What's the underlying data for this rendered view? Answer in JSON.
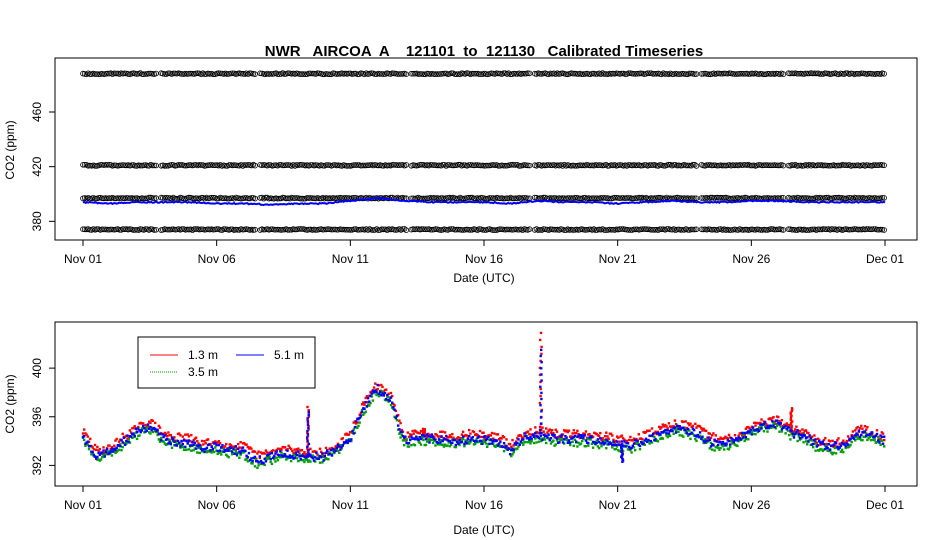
{
  "chart_data": [
    {
      "type": "scatter",
      "title": "NWR   AIRCOA  A    121101  to  121130   Calibrated Timeseries",
      "xlabel": "Date (UTC)",
      "ylabel": "CO2 (ppm)",
      "x_type": "date",
      "xlim": [
        "2012-11-01",
        "2012-12-01"
      ],
      "ylim": [
        370,
        490
      ],
      "x_ticks": [
        "Nov 01",
        "Nov 06",
        "Nov 11",
        "Nov 16",
        "Nov 21",
        "Nov 26",
        "Dec 01"
      ],
      "y_ticks": [
        380,
        420,
        460
      ],
      "grid": false,
      "series": [
        {
          "style": "open-circles",
          "color": "#000000",
          "levels": [
            374,
            397,
            421,
            488
          ],
          "gaps": [
            [
              "2012-11-03 18:00",
              "2012-11-03 21:00"
            ],
            [
              "2012-11-07 12:00",
              "2012-11-07 15:00"
            ],
            [
              "2012-11-13 03:00",
              "2012-11-13 06:00"
            ],
            [
              "2012-11-17 18:00",
              "2012-11-17 21:00"
            ],
            [
              "2012-11-24 00:00",
              "2012-11-24 03:00"
            ],
            [
              "2012-11-27 06:00",
              "2012-11-27 09:00"
            ]
          ]
        },
        {
          "style": "line",
          "color": "#0000ff",
          "x": [
            "2012-11-01",
            "2012-11-02",
            "2012-11-03",
            "2012-11-04",
            "2012-11-05",
            "2012-11-06",
            "2012-11-07",
            "2012-11-08",
            "2012-11-09",
            "2012-11-10",
            "2012-11-11",
            "2012-11-12",
            "2012-11-13",
            "2012-11-14",
            "2012-11-15",
            "2012-11-16",
            "2012-11-17",
            "2012-11-18",
            "2012-11-19",
            "2012-11-20",
            "2012-11-21",
            "2012-11-22",
            "2012-11-23",
            "2012-11-24",
            "2012-11-25",
            "2012-11-26",
            "2012-11-27",
            "2012-11-28",
            "2012-11-29",
            "2012-11-30",
            "2012-12-01"
          ],
          "values": [
            394,
            393,
            394,
            394,
            394,
            393,
            393,
            392,
            393,
            393,
            395,
            397,
            395,
            394,
            394,
            394,
            393,
            395,
            394,
            394,
            393,
            394,
            395,
            394,
            394,
            395,
            395,
            394,
            394,
            394,
            394
          ]
        }
      ]
    },
    {
      "type": "scatter",
      "xlabel": "Date (UTC)",
      "ylabel": "CO2 (ppm)",
      "x_type": "date",
      "xlim": [
        "2012-11-01",
        "2012-12-01"
      ],
      "ylim": [
        390.8,
        403.3
      ],
      "x_ticks": [
        "Nov 01",
        "Nov 06",
        "Nov 11",
        "Nov 16",
        "Nov 21",
        "Nov 26",
        "Dec 01"
      ],
      "y_ticks": [
        392,
        396,
        400
      ],
      "grid": false,
      "legend_position": "top-left",
      "legend": [
        {
          "label": "1.3 m",
          "color": "#ff0000"
        },
        {
          "label": "5.1 m",
          "color": "#0000ff"
        },
        {
          "label": "3.5 m",
          "color": "#00a000"
        }
      ],
      "x": [
        "2012-11-01 00:00",
        "2012-11-01 12:00",
        "2012-11-02 00:00",
        "2012-11-02 12:00",
        "2012-11-03 00:00",
        "2012-11-03 12:00",
        "2012-11-04 00:00",
        "2012-11-04 12:00",
        "2012-11-05 00:00",
        "2012-11-05 12:00",
        "2012-11-06 00:00",
        "2012-11-06 12:00",
        "2012-11-07 00:00",
        "2012-11-07 12:00",
        "2012-11-08 00:00",
        "2012-11-08 12:00",
        "2012-11-09 00:00",
        "2012-11-09 12:00",
        "2012-11-10 00:00",
        "2012-11-10 12:00",
        "2012-11-11 00:00",
        "2012-11-11 12:00",
        "2012-11-12 00:00",
        "2012-11-12 12:00",
        "2012-11-13 00:00",
        "2012-11-13 12:00",
        "2012-11-14 00:00",
        "2012-11-14 12:00",
        "2012-11-15 00:00",
        "2012-11-15 12:00",
        "2012-11-16 00:00",
        "2012-11-16 12:00",
        "2012-11-17 00:00",
        "2012-11-17 12:00",
        "2012-11-18 00:00",
        "2012-11-18 12:00",
        "2012-11-19 00:00",
        "2012-11-19 12:00",
        "2012-11-20 00:00",
        "2012-11-20 12:00",
        "2012-11-21 00:00",
        "2012-11-21 12:00",
        "2012-11-22 00:00",
        "2012-11-22 12:00",
        "2012-11-23 00:00",
        "2012-11-23 12:00",
        "2012-11-24 00:00",
        "2012-11-24 12:00",
        "2012-11-25 00:00",
        "2012-11-25 12:00",
        "2012-11-26 00:00",
        "2012-11-26 12:00",
        "2012-11-27 00:00",
        "2012-11-27 12:00",
        "2012-11-28 00:00",
        "2012-11-28 12:00",
        "2012-11-29 00:00",
        "2012-11-29 12:00",
        "2012-11-30 00:00",
        "2012-11-30 12:00",
        "2012-12-01 00:00"
      ],
      "series": [
        {
          "name": "1.3 m",
          "color": "#ff0000",
          "values": [
            394.8,
            393.2,
            393.4,
            394.3,
            395.0,
            395.6,
            394.6,
            394.3,
            394.2,
            393.8,
            393.9,
            393.6,
            393.6,
            392.8,
            393.0,
            393.4,
            393.2,
            393.1,
            393.0,
            393.6,
            394.6,
            397.0,
            398.6,
            397.8,
            394.4,
            394.6,
            394.6,
            394.5,
            394.4,
            394.6,
            394.5,
            394.4,
            393.6,
            394.7,
            394.9,
            394.6,
            394.6,
            394.6,
            394.5,
            394.4,
            394.2,
            394.0,
            394.5,
            394.9,
            395.4,
            395.4,
            395.0,
            394.4,
            394.1,
            394.5,
            395.1,
            395.6,
            395.7,
            395.0,
            394.8,
            394.1,
            393.8,
            394.0,
            395.0,
            394.8,
            394.3
          ],
          "spikes": [
            {
              "x": "2012-11-09 10:00",
              "value": 396.8
            },
            {
              "x": "2012-11-13 18:00",
              "value": 395.0
            },
            {
              "x": "2012-11-18 03:00",
              "value": 402.9
            },
            {
              "x": "2012-11-27 12:00",
              "value": 396.7
            }
          ]
        },
        {
          "name": "3.5 m",
          "color": "#00a000",
          "values": [
            394.2,
            392.6,
            393.0,
            393.6,
            394.5,
            395.0,
            394.0,
            393.6,
            393.4,
            393.2,
            393.2,
            393.0,
            392.9,
            392.1,
            392.4,
            392.8,
            392.6,
            392.5,
            392.5,
            393.1,
            394.1,
            396.5,
            398.1,
            397.3,
            393.8,
            394.0,
            394.0,
            393.9,
            393.8,
            394.0,
            393.9,
            393.8,
            393.0,
            394.1,
            394.2,
            393.9,
            393.9,
            393.9,
            393.8,
            393.7,
            393.5,
            393.3,
            393.8,
            394.3,
            394.8,
            394.7,
            394.3,
            393.5,
            393.4,
            393.9,
            394.6,
            395.1,
            395.2,
            394.4,
            394.2,
            393.4,
            393.2,
            393.4,
            394.4,
            394.2,
            393.7
          ]
        },
        {
          "name": "5.1 m",
          "color": "#0000ff",
          "values": [
            394.4,
            392.8,
            393.1,
            393.9,
            394.7,
            395.2,
            394.2,
            393.9,
            393.7,
            393.4,
            393.5,
            393.3,
            393.2,
            392.4,
            392.6,
            393.1,
            392.8,
            392.7,
            392.7,
            393.3,
            394.3,
            396.7,
            398.3,
            397.5,
            394.0,
            394.2,
            394.2,
            394.1,
            394.0,
            394.2,
            394.1,
            394.0,
            393.2,
            394.3,
            394.5,
            394.2,
            394.2,
            394.2,
            394.1,
            394.0,
            393.8,
            393.6,
            394.1,
            394.5,
            395.0,
            395.0,
            394.6,
            393.8,
            393.7,
            394.1,
            394.8,
            395.3,
            395.4,
            394.7,
            394.4,
            393.7,
            393.5,
            393.7,
            394.7,
            394.5,
            394.0
          ],
          "spikes": [
            {
              "x": "2012-11-09 10:00",
              "value": 396.4
            },
            {
              "x": "2012-11-18 03:00",
              "value": 401.5
            },
            {
              "x": "2012-11-21 04:00",
              "value": 392.3
            }
          ]
        }
      ]
    }
  ]
}
